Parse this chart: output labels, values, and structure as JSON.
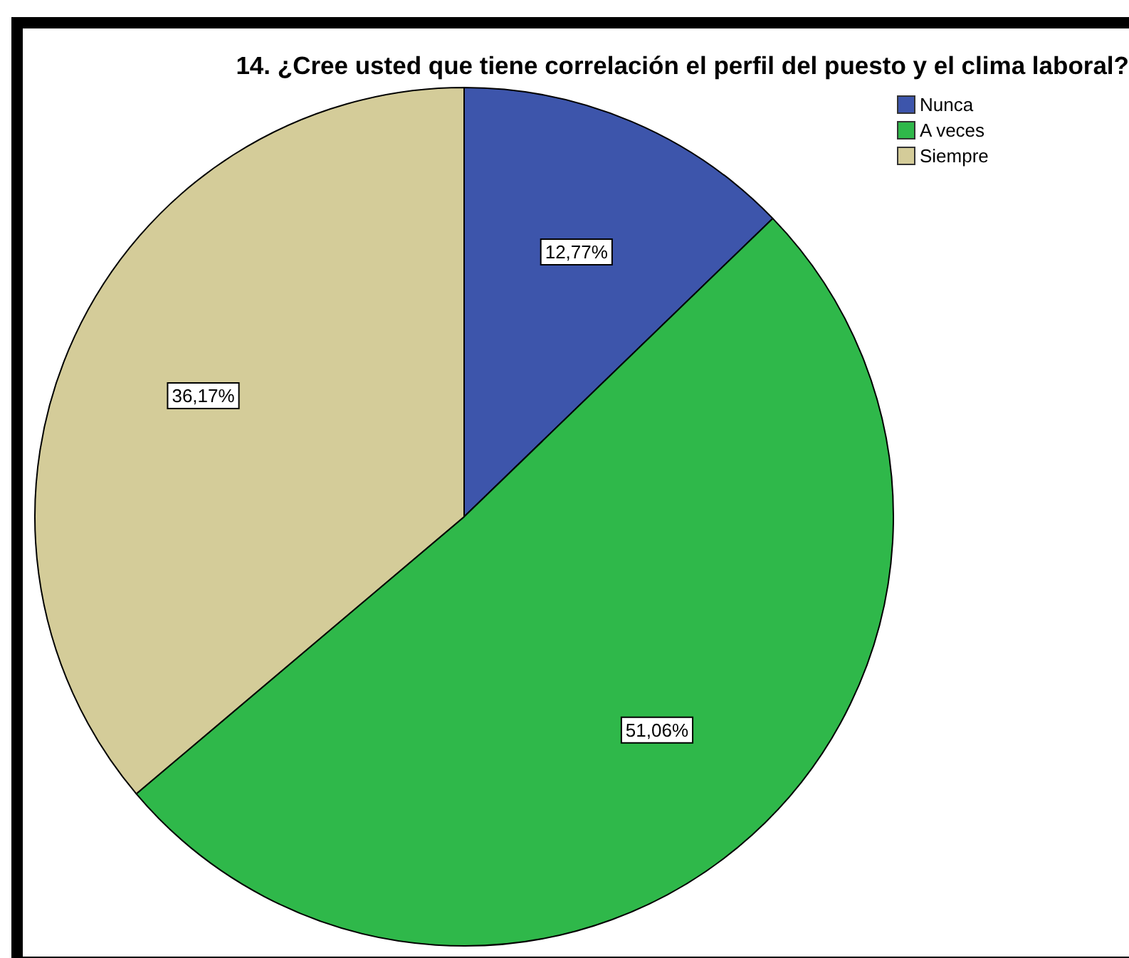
{
  "chart_data": {
    "type": "pie",
    "title": "14. ¿Cree usted que tiene correlación el perfil del puesto y el clima laboral?",
    "categories": [
      "Nunca",
      "A veces",
      "Siempre"
    ],
    "values": [
      12.77,
      51.06,
      36.17
    ],
    "colors": [
      "#3d55ab",
      "#2fb84a",
      "#d4cc99"
    ],
    "value_labels": [
      "12,77%",
      "51,06%",
      "36,17%"
    ],
    "legend": "top right"
  }
}
